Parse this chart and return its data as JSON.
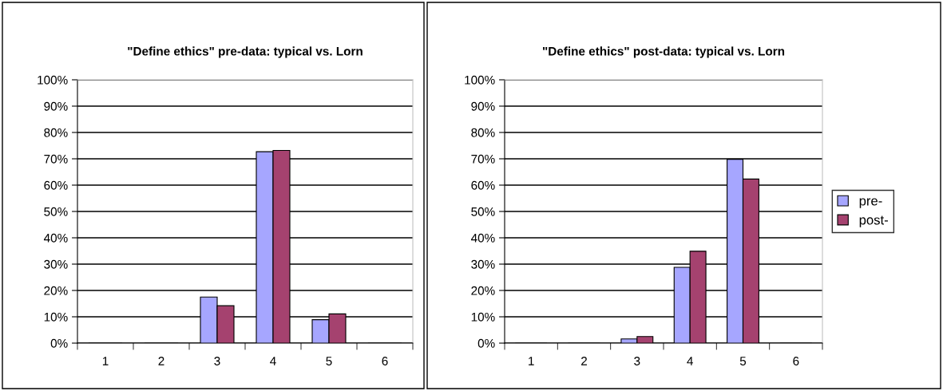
{
  "chart_data": [
    {
      "type": "bar",
      "title": "\"Define ethics\" pre-data: typical vs. Lorn",
      "categories": [
        "1",
        "2",
        "3",
        "4",
        "5",
        "6"
      ],
      "series": [
        {
          "color": "#a6a6ff",
          "values": [
            0,
            0,
            17.5,
            72.7,
            8.9,
            0
          ]
        },
        {
          "color": "#a5426f",
          "values": [
            0,
            0,
            14.2,
            73.2,
            11.1,
            0
          ]
        }
      ],
      "ylim": [
        0,
        100
      ],
      "yticks": [
        {
          "value": 0,
          "label": "0%"
        },
        {
          "value": 10,
          "label": "10%"
        },
        {
          "value": 20,
          "label": "20%"
        },
        {
          "value": 30,
          "label": "30%"
        },
        {
          "value": 40,
          "label": "40%"
        },
        {
          "value": 50,
          "label": "50%"
        },
        {
          "value": 60,
          "label": "60%"
        },
        {
          "value": 70,
          "label": "70%"
        },
        {
          "value": 80,
          "label": "80%"
        },
        {
          "value": 90,
          "label": "90%"
        },
        {
          "value": 100,
          "label": "100%"
        }
      ],
      "grid": "y",
      "legend": false
    },
    {
      "type": "bar",
      "title": "\"Define ethics\" post-data: typical vs. Lorn",
      "categories": [
        "1",
        "2",
        "3",
        "4",
        "5",
        "6"
      ],
      "series": [
        {
          "name": "pre-",
          "color": "#a6a6ff",
          "values": [
            0,
            0,
            1.6,
            28.8,
            69.8,
            0
          ]
        },
        {
          "name": "post-",
          "color": "#a5426f",
          "values": [
            0,
            0,
            2.5,
            34.9,
            62.3,
            0
          ]
        }
      ],
      "ylim": [
        0,
        100
      ],
      "yticks": [
        {
          "value": 0,
          "label": "0%"
        },
        {
          "value": 10,
          "label": "10%"
        },
        {
          "value": 20,
          "label": "20%"
        },
        {
          "value": 30,
          "label": "30%"
        },
        {
          "value": 40,
          "label": "40%"
        },
        {
          "value": 50,
          "label": "50%"
        },
        {
          "value": 60,
          "label": "60%"
        },
        {
          "value": 70,
          "label": "70%"
        },
        {
          "value": 80,
          "label": "80%"
        },
        {
          "value": 90,
          "label": "90%"
        },
        {
          "value": 100,
          "label": "100%"
        }
      ],
      "grid": "y",
      "legend": "right"
    }
  ]
}
